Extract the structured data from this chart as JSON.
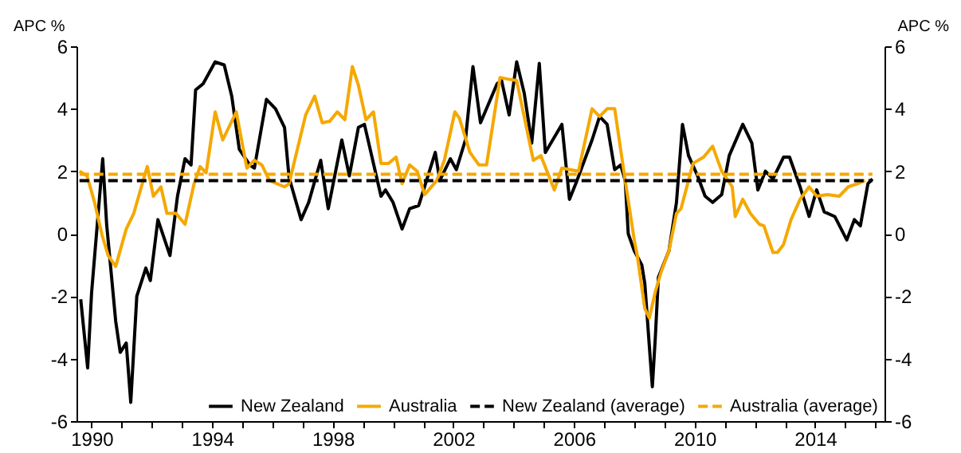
{
  "chart_data": {
    "type": "line",
    "ylabel": "APC %",
    "y2label": "APC %",
    "xlim": [
      1989.5,
      2016.3
    ],
    "xticks": [
      1990,
      {
        "value": 1991,
        "label": null
      },
      {
        "value": 1992,
        "label": null
      },
      {
        "value": 1993,
        "label": null
      },
      1994,
      {
        "value": 1995,
        "label": null
      },
      {
        "value": 1996,
        "label": null
      },
      {
        "value": 1997,
        "label": null
      },
      1998,
      {
        "value": 1999,
        "label": null
      },
      {
        "value": 2000,
        "label": null
      },
      {
        "value": 2001,
        "label": null
      },
      2002,
      {
        "value": 2003,
        "label": null
      },
      {
        "value": 2004,
        "label": null
      },
      {
        "value": 2005,
        "label": null
      },
      2006,
      {
        "value": 2007,
        "label": null
      },
      {
        "value": 2008,
        "label": null
      },
      {
        "value": 2009,
        "label": null
      },
      2010,
      {
        "value": 2011,
        "label": null
      },
      {
        "value": 2012,
        "label": null
      },
      {
        "value": 2013,
        "label": null
      },
      2014,
      {
        "value": 2015,
        "label": null
      },
      {
        "value": 2016,
        "label": null
      }
    ],
    "ylim": [
      -6,
      6
    ],
    "yticks": [
      -6,
      -4,
      -2,
      0,
      2,
      4,
      6
    ],
    "y2lim": [
      -6,
      6
    ],
    "y2ticks": [
      -6,
      -4,
      -2,
      0,
      2,
      4,
      6
    ],
    "grid": false,
    "legend": "bottom right",
    "series": [
      {
        "name": "New Zealand",
        "color": "#000000",
        "line_style": "solid",
        "x": [
          1989.64,
          1989.87,
          1990.0,
          1990.37,
          1990.5,
          1990.8,
          1990.95,
          1991.15,
          1991.3,
          1991.5,
          1991.8,
          1991.95,
          1992.2,
          1992.6,
          1992.85,
          1993.1,
          1993.3,
          1993.45,
          1993.7,
          1994.1,
          1994.4,
          1994.65,
          1994.9,
          1995.25,
          1995.4,
          1995.8,
          1996.1,
          1996.4,
          1996.55,
          1996.95,
          1997.2,
          1997.6,
          1997.85,
          1998.3,
          1998.55,
          1998.85,
          1999.05,
          1999.6,
          1999.75,
          2000.0,
          2000.3,
          2000.55,
          2000.85,
          2001.4,
          2001.55,
          2001.9,
          2002.1,
          2002.4,
          2002.65,
          2002.9,
          2003.45,
          2003.6,
          2003.85,
          2004.1,
          2004.35,
          2004.6,
          2004.85,
          2005.05,
          2005.6,
          2005.85,
          2006.1,
          2006.6,
          2006.85,
          2007.1,
          2007.35,
          2007.55,
          2007.7,
          2007.8,
          2008.0,
          2008.25,
          2008.35,
          2008.5,
          2008.6,
          2008.7,
          2008.8,
          2009.15,
          2009.4,
          2009.6,
          2009.8,
          2010.1,
          2010.35,
          2010.6,
          2010.9,
          2011.15,
          2011.6,
          2011.9,
          2012.1,
          2012.35,
          2012.6,
          2012.95,
          2013.15,
          2013.5,
          2013.8,
          2014.05,
          2014.3,
          2014.65,
          2015.05,
          2015.3,
          2015.5,
          2015.75,
          2015.9
        ],
        "values": [
          -2.1,
          -4.3,
          -1.9,
          2.4,
          0.3,
          -2.8,
          -3.8,
          -3.5,
          -5.4,
          -2.0,
          -1.1,
          -1.5,
          0.45,
          -0.7,
          1.2,
          2.4,
          2.2,
          4.6,
          4.8,
          5.5,
          5.4,
          4.4,
          2.7,
          2.2,
          2.1,
          4.3,
          4.0,
          3.4,
          1.8,
          0.45,
          1.0,
          2.35,
          0.8,
          3.0,
          1.85,
          3.4,
          3.5,
          1.2,
          1.4,
          1.0,
          0.15,
          0.8,
          0.9,
          2.6,
          1.7,
          2.4,
          2.05,
          3.0,
          5.35,
          3.55,
          4.8,
          4.9,
          3.8,
          5.5,
          4.5,
          2.9,
          5.45,
          2.6,
          3.5,
          1.1,
          1.7,
          3.0,
          3.75,
          3.5,
          2.05,
          2.2,
          1.7,
          0.0,
          -0.55,
          -1.0,
          -1.6,
          -3.6,
          -4.9,
          -3.3,
          -1.4,
          -0.55,
          1.0,
          3.5,
          2.5,
          1.85,
          1.2,
          1.0,
          1.25,
          2.5,
          3.5,
          2.9,
          1.4,
          2.0,
          1.75,
          2.45,
          2.45,
          1.5,
          0.55,
          1.4,
          0.7,
          0.55,
          -0.2,
          0.45,
          0.25,
          1.6,
          1.75
        ]
      },
      {
        "name": "Australia",
        "color": "#f5a800",
        "line_style": "solid",
        "x": [
          1989.6,
          1989.85,
          1990.1,
          1990.35,
          1990.55,
          1990.8,
          1991.15,
          1991.4,
          1991.8,
          1991.85,
          1992.05,
          1992.3,
          1992.5,
          1992.8,
          1993.1,
          1993.4,
          1993.6,
          1993.8,
          1994.1,
          1994.35,
          1994.8,
          1995.15,
          1995.4,
          1995.65,
          1995.9,
          1996.4,
          1996.55,
          1997.1,
          1997.4,
          1997.65,
          1997.9,
          1998.15,
          1998.4,
          1998.65,
          1998.85,
          1999.1,
          1999.35,
          1999.6,
          1999.85,
          2000.1,
          2000.3,
          2000.55,
          2000.8,
          2001.05,
          2001.45,
          2001.7,
          2002.05,
          2002.2,
          2002.55,
          2002.85,
          2003.1,
          2003.55,
          2003.8,
          2004.1,
          2004.65,
          2004.9,
          2005.35,
          2005.6,
          2006.15,
          2006.6,
          2006.85,
          2007.1,
          2007.35,
          2007.7,
          2008.0,
          2008.1,
          2008.35,
          2008.5,
          2008.7,
          2008.9,
          2009.15,
          2009.4,
          2009.55,
          2009.95,
          2010.3,
          2010.6,
          2010.9,
          2011.25,
          2011.35,
          2011.6,
          2011.85,
          2012.15,
          2012.3,
          2012.6,
          2012.75,
          2012.95,
          2013.2,
          2013.5,
          2013.8,
          2014.05,
          2014.4,
          2014.8,
          2015.1,
          2015.4,
          2015.65
        ],
        "values": [
          2.0,
          1.85,
          1.0,
          -0.05,
          -0.7,
          -1.05,
          0.15,
          0.65,
          2.0,
          2.15,
          1.2,
          1.5,
          0.65,
          0.65,
          0.3,
          1.6,
          2.15,
          1.95,
          3.9,
          3.0,
          3.9,
          2.1,
          2.35,
          2.2,
          1.7,
          1.5,
          1.6,
          3.8,
          4.4,
          3.55,
          3.6,
          3.9,
          3.65,
          5.35,
          4.75,
          3.65,
          3.9,
          2.25,
          2.25,
          2.45,
          1.6,
          2.2,
          2.0,
          1.25,
          1.7,
          2.35,
          3.9,
          3.7,
          2.6,
          2.2,
          2.2,
          5.0,
          4.95,
          4.9,
          2.35,
          2.5,
          1.4,
          2.1,
          2.0,
          4.0,
          3.75,
          4.0,
          4.0,
          1.7,
          -0.2,
          -0.7,
          -2.4,
          -2.7,
          -1.85,
          -1.2,
          -0.55,
          0.65,
          0.8,
          2.25,
          2.45,
          2.8,
          2.0,
          1.5,
          0.55,
          1.1,
          0.65,
          0.3,
          0.25,
          -0.6,
          -0.6,
          -0.35,
          0.45,
          1.1,
          1.5,
          1.2,
          1.25,
          1.2,
          1.5,
          1.6,
          1.7
        ]
      },
      {
        "name": "New Zealand (average)",
        "color": "#000000",
        "line_style": "dashed",
        "axis": "y2",
        "x": [
          1989.6,
          2015.9
        ],
        "values": [
          1.7,
          1.7
        ]
      },
      {
        "name": "Australia (average)",
        "color": "#f5a800",
        "line_style": "dashed",
        "axis": "y2",
        "x": [
          1989.6,
          2015.9
        ],
        "values": [
          1.9,
          1.9
        ]
      }
    ]
  }
}
